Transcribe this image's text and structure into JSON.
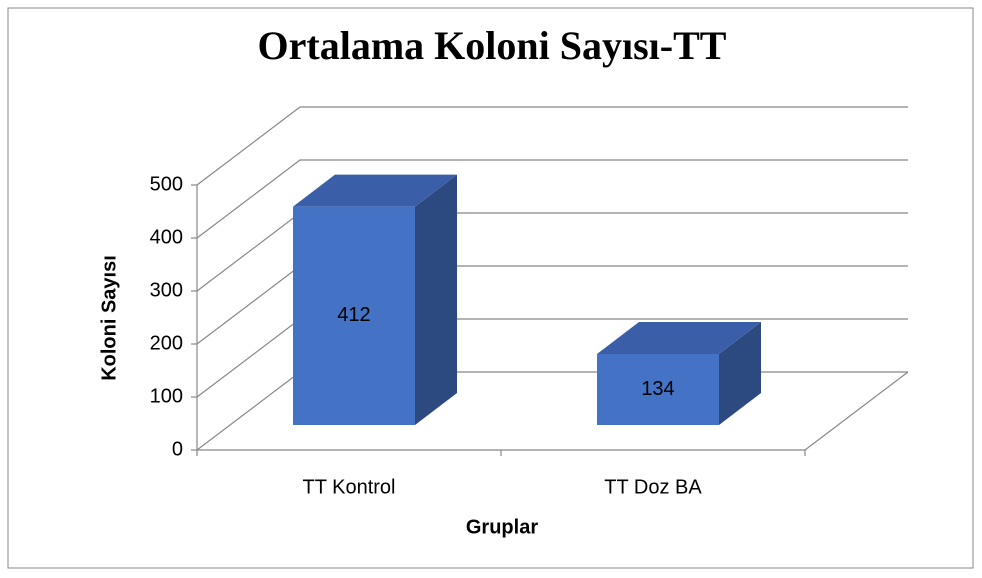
{
  "chart_data": {
    "type": "bar3d",
    "title": "Ortalama Koloni Sayısı-TT",
    "categories": [
      "TT Kontrol",
      "TT Doz BA"
    ],
    "values": [
      412,
      134
    ],
    "color": "#4472c4",
    "ylim": [
      0,
      500
    ],
    "yticks": [
      0,
      100,
      200,
      300,
      400,
      500
    ],
    "grid": true,
    "xlabel": "Gruplar",
    "ylabel": "Koloni Sayısı"
  }
}
